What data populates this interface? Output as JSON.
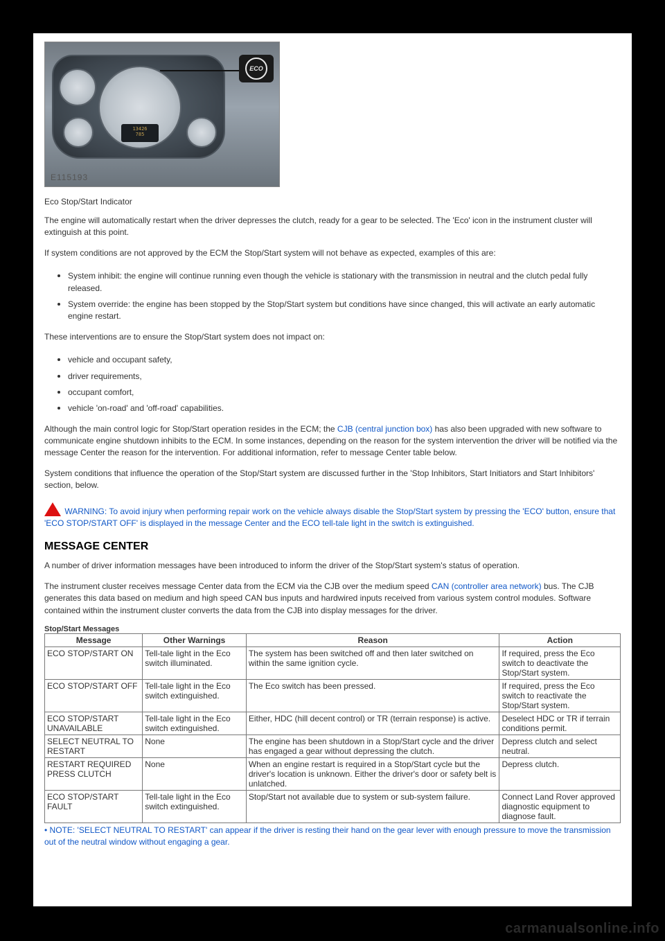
{
  "illustration": {
    "enum": "E115193",
    "eco_badge": "ECO",
    "odo_top": "13426",
    "odo_bot": "785"
  },
  "caption": "Eco Stop/Start Indicator",
  "para1": "The engine will automatically restart when the driver depresses the clutch, ready for a gear to be selected. The 'Eco' icon in the instrument cluster will extinguish at this point.",
  "para2": "If system conditions are not approved by the ECM the Stop/Start system will not behave as expected, examples of this are:",
  "bullets1": [
    "System inhibit: the engine will continue running even though the vehicle is stationary with the transmission in neutral and the clutch pedal fully released.",
    "System override: the engine has been stopped by the Stop/Start system but conditions have since changed, this will activate an early automatic engine restart."
  ],
  "para3": "These interventions are to ensure the Stop/Start system does not impact on:",
  "bullets2": [
    "vehicle and occupant safety,",
    "driver requirements,",
    "occupant comfort,",
    "vehicle 'on-road' and 'off-road' capabilities."
  ],
  "para4_pre": "Although the main control logic for Stop/Start operation resides in the ECM; the ",
  "para4_link": "CJB (central junction box)",
  "para4_post": " has also been upgraded with new software to communicate engine shutdown inhibits to the ECM. In some instances, depending on the reason for the system intervention the driver will be notified via the message Center the reason for the intervention. For additional information, refer to message Center table below.",
  "para5": "System conditions that influence the operation of the Stop/Start system are discussed further in the 'Stop Inhibitors, Start Initiators and Start Inhibitors' section, below.",
  "warning": "WARNING: To avoid injury when performing repair work on the vehicle always disable the Stop/Start system by pressing the 'ECO' button, ensure that 'ECO STOP/START OFF' is displayed in the message Center and the ECO tell-tale light in the switch is extinguished.",
  "section_heading": "MESSAGE CENTER",
  "mc_p1": "A number of driver information messages have been introduced to inform the driver of the Stop/Start system's status of operation.",
  "mc_p2_pre": "The instrument cluster receives message Center data from the ECM via the CJB over the medium speed ",
  "mc_p2_link": "CAN (controller area network)",
  "mc_p2_post": " bus. The CJB generates this data based on medium and high speed CAN bus inputs and hardwired inputs received from various system control modules. Software contained within the instrument cluster converts the data from the CJB into display messages for the driver.",
  "table_title": "Stop/Start Messages",
  "table": {
    "headers": [
      "Message",
      "Other Warnings",
      "Reason",
      "Action"
    ],
    "rows": [
      [
        "ECO STOP/START ON",
        "Tell-tale light in the Eco switch illuminated.",
        "The system has been switched off and then later switched on within the same ignition cycle.",
        "If required, press the Eco switch to deactivate the Stop/Start system."
      ],
      [
        "ECO STOP/START OFF",
        "Tell-tale light in the Eco switch extinguished.",
        "The Eco switch has been pressed.",
        "If required, press the Eco switch to reactivate the Stop/Start system."
      ],
      [
        "ECO STOP/START UNAVAILABLE",
        "Tell-tale light in the Eco switch extinguished.",
        "Either, HDC (hill decent control) or TR (terrain response) is active.",
        "Deselect HDC or TR if terrain conditions permit."
      ],
      [
        "SELECT NEUTRAL TO RESTART",
        "None",
        "The engine has been shutdown in a Stop/Start cycle and the driver has engaged a gear without depressing the clutch.",
        "Depress clutch and select neutral."
      ],
      [
        "RESTART REQUIRED PRESS CLUTCH",
        "None",
        "When an engine restart is required in a Stop/Start cycle but the driver's location is unknown. Either the driver's door or safety belt is unlatched.",
        "Depress clutch."
      ],
      [
        "ECO STOP/START FAULT",
        "Tell-tale light in the Eco switch extinguished.",
        "Stop/Start not available due to system or sub-system failure.",
        "Connect Land Rover approved diagnostic equipment to diagnose fault."
      ]
    ]
  },
  "footnote": "• NOTE: 'SELECT NEUTRAL TO RESTART' can appear if the driver is resting their hand on the gear lever with enough pressure to move the transmission out of the neutral window without engaging a gear.",
  "watermark": "carmanualsonline.info"
}
